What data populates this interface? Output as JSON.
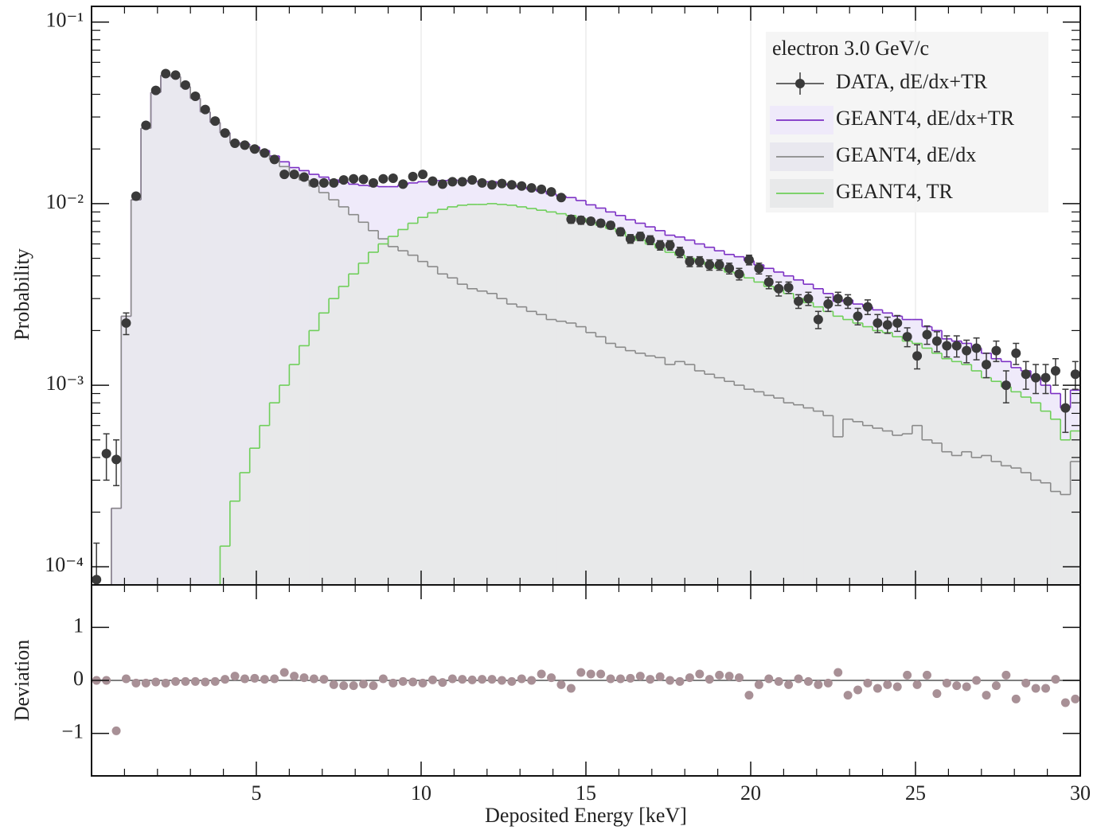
{
  "chart_data": [
    {
      "type": "histogram",
      "ylabel": "Probability",
      "log_y": true,
      "grid": true,
      "xlim": [
        0,
        30
      ],
      "xticks": [
        5,
        10,
        15,
        20,
        25,
        30
      ],
      "xminorticks": [
        1,
        2,
        3,
        4,
        6,
        7,
        8,
        9,
        11,
        12,
        13,
        14,
        16,
        17,
        18,
        19,
        21,
        22,
        23,
        24,
        26,
        27,
        28,
        29
      ],
      "ylim": [
        7.95e-05,
        0.122
      ],
      "yticks": [
        {
          "value": 0.0001,
          "label": "10⁻⁴"
        },
        {
          "value": 0.001,
          "label": "10⁻³"
        },
        {
          "value": 0.01,
          "label": "10⁻²"
        },
        {
          "value": 0.1,
          "label": "10⁻¹"
        }
      ],
      "yminorticks": [
        0.0002,
        0.0003,
        0.0004,
        0.0005,
        0.0006,
        0.0007,
        0.0008,
        0.0009,
        0.002,
        0.003,
        0.004,
        0.005,
        0.006,
        0.007,
        0.008,
        0.009,
        0.02,
        0.03,
        0.04,
        0.05,
        0.06,
        0.07,
        0.08,
        0.09
      ],
      "legend_title": "electron 3.0 GeV/c",
      "legend": "upper right",
      "bins": [
        0,
        0.3,
        0.6,
        0.9,
        1.2,
        1.5,
        1.8,
        2.1,
        2.4,
        2.7,
        3,
        3.3,
        3.6,
        3.9,
        4.2,
        4.5,
        4.8,
        5.1,
        5.4,
        5.7,
        6,
        6.3,
        6.6,
        6.9,
        7.2,
        7.5,
        7.8,
        8.1,
        8.4,
        8.7,
        9,
        9.3,
        9.6,
        9.9,
        10.2,
        10.5,
        10.8,
        11.1,
        11.4,
        11.7,
        12,
        12.3,
        12.6,
        12.9,
        13.2,
        13.5,
        13.8,
        14.1,
        14.4,
        14.7,
        15,
        15.3,
        15.6,
        15.9,
        16.2,
        16.5,
        16.8,
        17.1,
        17.4,
        17.7,
        18,
        18.3,
        18.6,
        18.9,
        19.2,
        19.5,
        19.8,
        20.1,
        20.4,
        20.7,
        21,
        21.3,
        21.6,
        21.9,
        22.2,
        22.5,
        22.8,
        23.1,
        23.4,
        23.7,
        24,
        24.3,
        24.6,
        24.9,
        25.2,
        25.5,
        25.8,
        26.1,
        26.4,
        26.7,
        27,
        27.3,
        27.6,
        27.9,
        28.2,
        28.5,
        28.8,
        29.1,
        29.4,
        29.7,
        30
      ],
      "series": [
        {
          "name": "DATA, dE/dx+TR",
          "style": "points",
          "color": "#3a3a3a",
          "values": [
            8.5e-05,
            0.00042,
            0.00039,
            0.0022,
            0.011,
            0.027,
            0.042,
            0.052,
            0.051,
            0.045,
            0.039,
            0.033,
            0.0285,
            0.0245,
            0.0215,
            0.021,
            0.02,
            0.019,
            0.0175,
            0.0145,
            0.0145,
            0.014,
            0.013,
            0.013,
            0.013,
            0.0135,
            0.0137,
            0.0136,
            0.013,
            0.0137,
            0.0138,
            0.0128,
            0.0141,
            0.0145,
            0.0133,
            0.0128,
            0.0132,
            0.0132,
            0.0135,
            0.013,
            0.0127,
            0.0129,
            0.0127,
            0.0125,
            0.0122,
            0.012,
            0.0116,
            0.0108,
            0.0082,
            0.0081,
            0.008,
            0.0078,
            0.0076,
            0.007,
            0.0064,
            0.0066,
            0.0063,
            0.0059,
            0.0059,
            0.0054,
            0.0048,
            0.0048,
            0.0046,
            0.0046,
            0.0044,
            0.0041,
            0.0049,
            0.0044,
            0.0037,
            0.0034,
            0.00345,
            0.0029,
            0.003,
            0.0023,
            0.0028,
            0.003,
            0.0029,
            0.0024,
            0.0027,
            0.0022,
            0.00215,
            0.0022,
            0.00185,
            0.00145,
            0.0019,
            0.00175,
            0.00165,
            0.00165,
            0.00155,
            0.0016,
            0.0013,
            0.00155,
            0.001,
            0.0015,
            0.00115,
            0.0011,
            0.0011,
            0.0012,
            0.00075,
            0.00115
          ],
          "errors": [
            5e-05,
            0.00012,
            0.00011,
            0.0003,
            0.0004,
            0.0006,
            0.0008,
            0.0009,
            0.0009,
            0.0008,
            0.0008,
            0.0007,
            0.0006,
            0.0006,
            0.0005,
            0.0005,
            0.0005,
            0.0005,
            0.0004,
            0.0004,
            0.0004,
            0.0004,
            0.0004,
            0.0004,
            0.0004,
            0.0004,
            0.0004,
            0.0004,
            0.0004,
            0.0004,
            0.0004,
            0.0004,
            0.0004,
            0.0004,
            0.0004,
            0.0004,
            0.0004,
            0.0004,
            0.0004,
            0.0004,
            0.0004,
            0.0004,
            0.0004,
            0.0004,
            0.0004,
            0.0004,
            0.0004,
            0.0004,
            0.0004,
            0.0004,
            0.00035,
            0.00035,
            0.00035,
            0.00035,
            0.00035,
            0.00035,
            0.00035,
            0.00035,
            0.00035,
            0.00035,
            0.0003,
            0.0003,
            0.0003,
            0.0003,
            0.0003,
            0.0003,
            0.0003,
            0.0003,
            0.0003,
            0.0003,
            0.00025,
            0.00025,
            0.00025,
            0.00025,
            0.00025,
            0.00025,
            0.00025,
            0.00025,
            0.00025,
            0.00025,
            0.00022,
            0.00022,
            0.00022,
            0.00022,
            0.00022,
            0.00022,
            0.00022,
            0.00022,
            0.00022,
            0.00022,
            0.0002,
            0.0002,
            0.0002,
            0.0002,
            0.0002,
            0.0002,
            0.0002,
            0.0002,
            0.0002,
            0.0002
          ]
        },
        {
          "name": "GEANT4, dE/dx+TR",
          "style": "step",
          "color": "#7b2fc4",
          "fill": "#efeafa",
          "values": [
            null,
            null,
            0.00021,
            0.0024,
            0.0105,
            0.026,
            0.041,
            0.051,
            0.05,
            0.044,
            0.038,
            0.032,
            0.028,
            0.0246,
            0.0217,
            0.0213,
            0.0205,
            0.0196,
            0.0183,
            0.017,
            0.0158,
            0.0152,
            0.0145,
            0.014,
            0.0135,
            0.0131,
            0.0128,
            0.0126,
            0.0125,
            0.0124,
            0.0124,
            0.0127,
            0.013,
            0.0132,
            0.0134,
            0.0134,
            0.0135,
            0.0134,
            0.0133,
            0.0132,
            0.0132,
            0.0129,
            0.0126,
            0.0123,
            0.012,
            0.0117,
            0.0113,
            0.011,
            0.0108,
            0.0104,
            0.00985,
            0.00945,
            0.009,
            0.0086,
            0.00815,
            0.0078,
            0.00745,
            0.0071,
            0.0067,
            0.00655,
            0.0063,
            0.006,
            0.00575,
            0.0055,
            0.00525,
            0.0051,
            0.00485,
            0.0046,
            0.0044,
            0.0042,
            0.004,
            0.0038,
            0.0036,
            0.0034,
            0.0032,
            0.0029,
            0.00295,
            0.0028,
            0.0027,
            0.0026,
            0.0025,
            0.0024,
            0.0023,
            0.0023,
            0.0021,
            0.002,
            0.0018,
            0.00175,
            0.0017,
            0.0016,
            0.0015,
            0.0014,
            0.00135,
            0.00125,
            0.0012,
            0.0011,
            0.001,
            0.0009,
            0.00075,
            0.00094
          ]
        },
        {
          "name": "GEANT4, dE/dx",
          "style": "step",
          "color": "#8a8a8a",
          "fill": "#e9e8ef",
          "values": [
            null,
            null,
            0.00021,
            0.0024,
            0.0105,
            0.026,
            0.041,
            0.051,
            0.05,
            0.044,
            0.038,
            0.032,
            0.028,
            0.0245,
            0.0215,
            0.021,
            0.02,
            0.019,
            0.0175,
            0.016,
            0.0145,
            0.0135,
            0.0125,
            0.0115,
            0.0105,
            0.0096,
            0.0087,
            0.0079,
            0.0071,
            0.0064,
            0.0058,
            0.0055,
            0.0052,
            0.0048,
            0.0045,
            0.0041,
            0.0039,
            0.0036,
            0.0034,
            0.0033,
            0.0032,
            0.003,
            0.0028,
            0.0027,
            0.00255,
            0.00245,
            0.0023,
            0.00225,
            0.0022,
            0.0021,
            0.00195,
            0.00185,
            0.0017,
            0.00162,
            0.00155,
            0.0015,
            0.00145,
            0.00142,
            0.0013,
            0.00135,
            0.0013,
            0.0012,
            0.00115,
            0.0011,
            0.00105,
            0.001,
            0.00095,
            0.00092,
            0.00088,
            0.00085,
            0.0008,
            0.00078,
            0.00075,
            0.00072,
            0.00068,
            0.00052,
            0.00065,
            0.00063,
            0.0006,
            0.00058,
            0.00056,
            0.00053,
            0.00054,
            0.0006,
            0.0005,
            0.00048,
            0.00043,
            0.00041,
            0.00043,
            0.0004,
            0.00041,
            0.00038,
            0.00036,
            0.00035,
            0.00033,
            0.0003,
            0.00029,
            0.00026,
            0.00025,
            0.00038
          ]
        },
        {
          "name": "GEANT4, TR",
          "style": "step",
          "color": "#6fcf5a",
          "fill": "#e8e9ea",
          "values": [
            null,
            null,
            null,
            null,
            null,
            null,
            null,
            null,
            null,
            null,
            null,
            null,
            null,
            0.00013,
            0.00023,
            0.00033,
            0.00045,
            0.0006,
            0.0008,
            0.001,
            0.0013,
            0.00165,
            0.002,
            0.0025,
            0.003,
            0.0035,
            0.0041,
            0.0047,
            0.0054,
            0.006,
            0.0066,
            0.0072,
            0.0078,
            0.0084,
            0.0089,
            0.0093,
            0.0096,
            0.0098,
            0.0099,
            0.0099,
            0.01,
            0.0099,
            0.0098,
            0.0096,
            0.0094,
            0.0092,
            0.009,
            0.0088,
            0.0086,
            0.0083,
            0.0079,
            0.0076,
            0.0073,
            0.007,
            0.0066,
            0.0063,
            0.006,
            0.0057,
            0.0054,
            0.0052,
            0.005,
            0.0048,
            0.0046,
            0.0044,
            0.0042,
            0.0041,
            0.0039,
            0.0037,
            0.0035,
            0.00335,
            0.0032,
            0.003,
            0.00285,
            0.0027,
            0.00255,
            0.0024,
            0.0023,
            0.0022,
            0.0021,
            0.002,
            0.00195,
            0.00185,
            0.00175,
            0.0017,
            0.0016,
            0.0015,
            0.0014,
            0.00135,
            0.0013,
            0.0012,
            0.0011,
            0.00105,
            0.00098,
            0.00092,
            0.00086,
            0.0008,
            0.00072,
            0.00065,
            0.0005,
            0.00056
          ]
        }
      ]
    },
    {
      "type": "scatter",
      "ylabel": "Deviation",
      "xlabel": "Deposited Energy [keV]",
      "xlim": [
        0,
        30
      ],
      "xticks": [
        5,
        10,
        15,
        20,
        25,
        30
      ],
      "xminorticks": [
        1,
        2,
        3,
        4,
        6,
        7,
        8,
        9,
        11,
        12,
        13,
        14,
        16,
        17,
        18,
        19,
        21,
        22,
        23,
        24,
        26,
        27,
        28,
        29
      ],
      "ylim": [
        -1.8,
        1.8
      ],
      "yticks": [
        {
          "value": -1,
          "label": "−1"
        },
        0,
        1
      ],
      "hline": 0,
      "color": "#a89096",
      "values": [
        0,
        0,
        -0.95,
        0.03,
        -0.05,
        -0.05,
        -0.03,
        -0.05,
        -0.02,
        -0.02,
        -0.02,
        -0.03,
        -0.02,
        0.02,
        0.08,
        0.03,
        0.04,
        0.02,
        0.03,
        0.15,
        0.08,
        0.05,
        0.03,
        0.02,
        -0.08,
        -0.1,
        -0.1,
        -0.07,
        -0.1,
        0.03,
        -0.05,
        -0.02,
        -0.03,
        -0.05,
        0.01,
        -0.04,
        0.03,
        0.02,
        0.01,
        0.02,
        0.02,
        0,
        -0.02,
        0.03,
        0,
        0.12,
        0.05,
        -0.08,
        -0.15,
        0.15,
        0.12,
        0.12,
        0.03,
        0.03,
        0.04,
        0.08,
        0.02,
        0.07,
        0,
        -0.02,
        0.05,
        0.12,
        0.02,
        0.1,
        0.08,
        0.05,
        -0.28,
        -0.08,
        0.03,
        -0.02,
        -0.08,
        0.03,
        -0.02,
        -0.08,
        -0.05,
        0.15,
        -0.28,
        -0.18,
        -0.05,
        -0.15,
        -0.08,
        -0.12,
        0.1,
        -0.08,
        0.1,
        -0.25,
        -0.05,
        -0.1,
        -0.12,
        0,
        -0.28,
        -0.1,
        0.1,
        -0.35,
        -0.05,
        -0.15,
        -0.15,
        0.02,
        -0.42,
        -0.35
      ]
    }
  ]
}
